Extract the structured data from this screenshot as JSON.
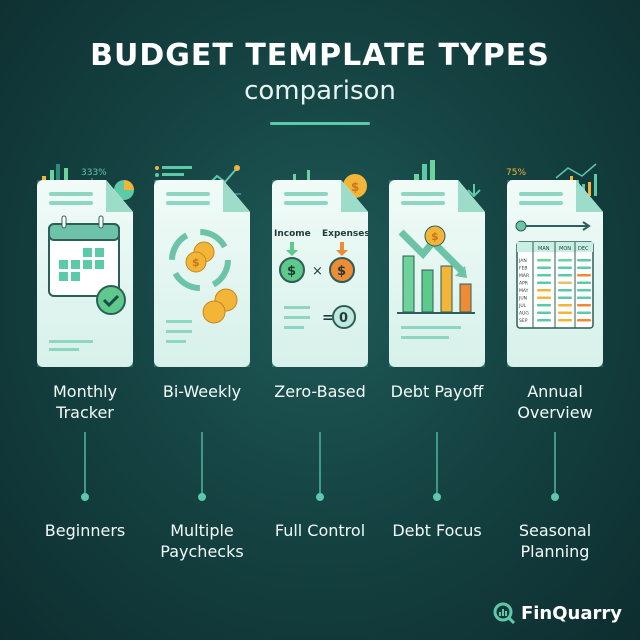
{
  "header": {
    "title": "BUDGET TEMPLATE TYPES",
    "subtitle": "comparison"
  },
  "columns": [
    {
      "name": "Monthly Tracker",
      "audience": "Beginners",
      "icon": "calendar-check-icon",
      "deco_text": "333%"
    },
    {
      "name": "Bi-Weekly",
      "audience": "Multiple Paychecks",
      "icon": "cycle-coins-icon"
    },
    {
      "name": "Zero-Based",
      "audience": "Full Control",
      "icon": "income-expense-equation-icon",
      "card_text": {
        "income": "Income",
        "expenses": "Expenses",
        "result": "0"
      }
    },
    {
      "name": "Debt Payoff",
      "audience": "Debt Focus",
      "icon": "declining-bars-icon"
    },
    {
      "name": "Annual Overview",
      "audience": "Seasonal Planning",
      "icon": "annual-table-icon",
      "deco_text": "75%",
      "table": {
        "headers": [
          "MAN",
          "MON",
          "DEC"
        ],
        "months": [
          "JAN",
          "FEB",
          "MAR",
          "APR",
          "MAY",
          "JUN",
          "JUL",
          "AUG",
          "SEP"
        ]
      }
    }
  ],
  "brand": {
    "name": "FinQuarry"
  },
  "colors": {
    "accent": "#5cc9a8",
    "gold": "#f2b538",
    "orange": "#ef8b32",
    "background": "#154443"
  }
}
